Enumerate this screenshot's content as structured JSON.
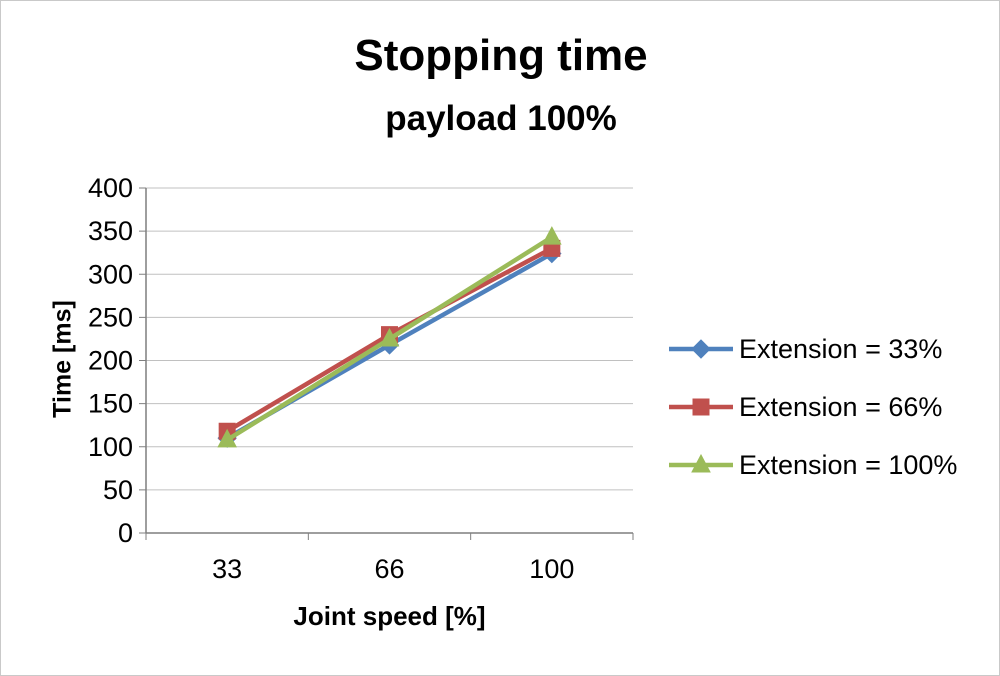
{
  "chart_data": {
    "type": "line",
    "title": "Stopping time",
    "subtitle": "payload 100%",
    "xlabel": "Joint speed [%]",
    "ylabel": "Time [ms]",
    "categories": [
      "33",
      "66",
      "100"
    ],
    "y_ticks": [
      0,
      50,
      100,
      150,
      200,
      250,
      300,
      350,
      400
    ],
    "ylim": [
      0,
      400
    ],
    "grid": true,
    "legend_position": "right",
    "series": [
      {
        "name": "Extension = 33%",
        "color": "#4F81BD",
        "marker": "diamond",
        "values": [
          110,
          218,
          324
        ]
      },
      {
        "name": "Extension = 66%",
        "color": "#C0504D",
        "marker": "square",
        "values": [
          118,
          230,
          330
        ]
      },
      {
        "name": "Extension = 100%",
        "color": "#9BBB59",
        "marker": "triangle",
        "values": [
          108,
          225,
          343
        ]
      }
    ]
  },
  "colors": {
    "grid": "#C0C0C0",
    "axis": "#7F7F7F",
    "text": "#000000"
  }
}
